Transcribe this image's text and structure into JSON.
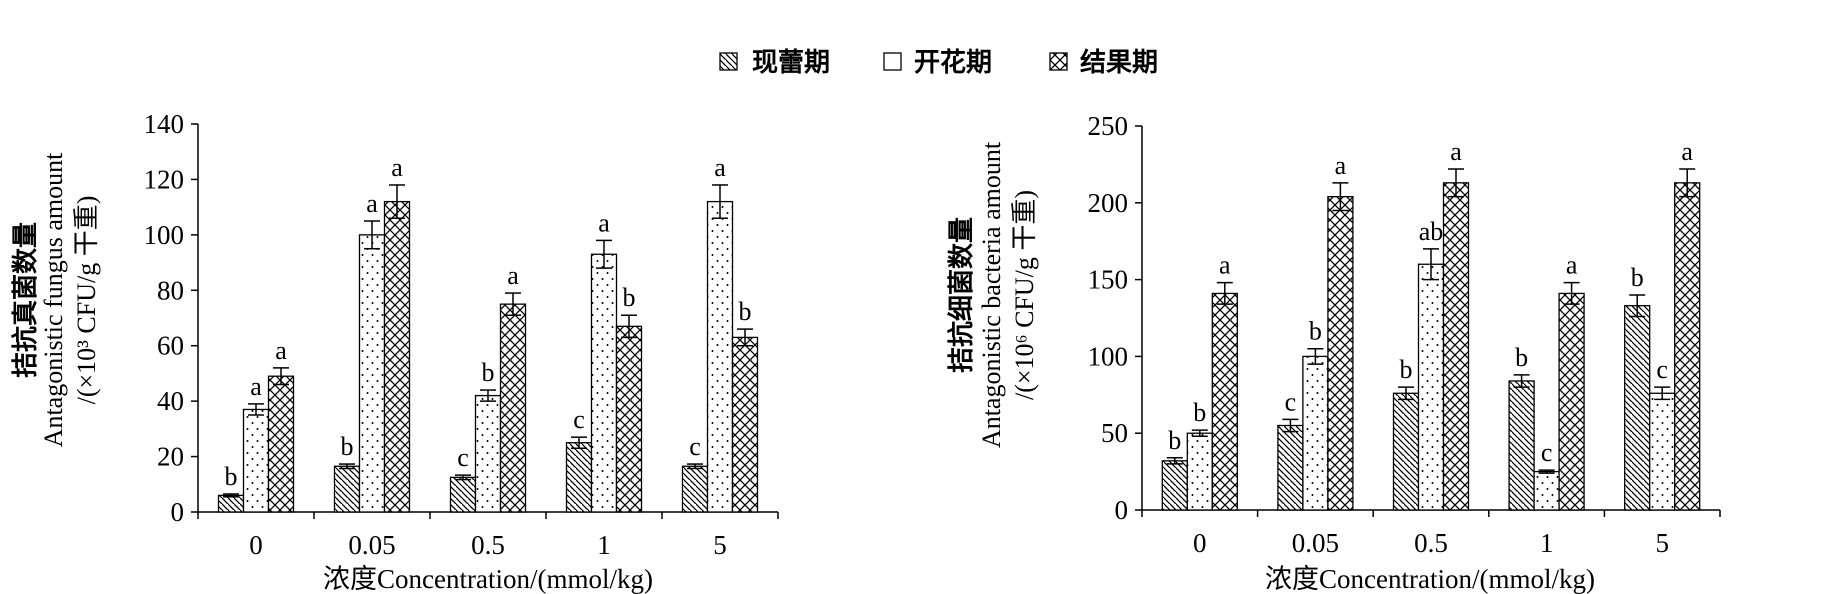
{
  "legend": {
    "items": [
      {
        "label": "现蕾期",
        "pattern": "hatch"
      },
      {
        "label": "开花期",
        "pattern": "dots"
      },
      {
        "label": "结果期",
        "pattern": "cross"
      }
    ]
  },
  "chart_data": [
    {
      "type": "bar",
      "ylabel_cn": "拮抗真菌数量",
      "ylabel_en": "Antagonistic fungus amount",
      "ylabel_unit": "/(×10³ CFU/g 干重)",
      "xlabel": "浓度Concentration/(mmol/kg)",
      "categories": [
        "0",
        "0.05",
        "0.5",
        "1",
        "5"
      ],
      "ylim": [
        0,
        140
      ],
      "yticks": [
        "0",
        "20",
        "40",
        "60",
        "80",
        "100",
        "120",
        "140"
      ],
      "series": [
        {
          "name": "现蕾期",
          "values": [
            6,
            16.5,
            12.5,
            25,
            16.5
          ],
          "errors": [
            0.5,
            0.8,
            0.8,
            2,
            0.8
          ],
          "letters": [
            "b",
            "b",
            "c",
            "c",
            "c"
          ]
        },
        {
          "name": "开花期",
          "values": [
            37,
            100,
            42,
            93,
            112
          ],
          "errors": [
            2,
            5,
            2,
            5,
            6
          ],
          "letters": [
            "a",
            "a",
            "b",
            "a",
            "a"
          ]
        },
        {
          "name": "结果期",
          "values": [
            49,
            112,
            75,
            67,
            63
          ],
          "errors": [
            3,
            6,
            4,
            4,
            3
          ],
          "letters": [
            "a",
            "a",
            "a",
            "b",
            "b"
          ]
        }
      ]
    },
    {
      "type": "bar",
      "ylabel_cn": "拮抗细菌数量",
      "ylabel_en": "Antagonistic bacteria amount",
      "ylabel_unit": "/(×10⁶ CFU/g 干重)",
      "xlabel": "浓度Concentration/(mmol/kg)",
      "categories": [
        "0",
        "0.05",
        "0.5",
        "1",
        "5"
      ],
      "ylim": [
        0,
        250
      ],
      "yticks": [
        "0",
        "50",
        "100",
        "150",
        "200",
        "250"
      ],
      "series": [
        {
          "name": "现蕾期",
          "values": [
            32,
            55,
            76,
            84,
            133
          ],
          "errors": [
            2,
            4,
            4,
            4,
            7
          ],
          "letters": [
            "b",
            "c",
            "b",
            "b",
            "b"
          ]
        },
        {
          "name": "开花期",
          "values": [
            50,
            100,
            160,
            25,
            76
          ],
          "errors": [
            2,
            5,
            10,
            1,
            4
          ],
          "letters": [
            "b",
            "b",
            "ab",
            "c",
            "c"
          ]
        },
        {
          "name": "结果期",
          "values": [
            141,
            204,
            213,
            141,
            213
          ],
          "errors": [
            7,
            9,
            9,
            7,
            9
          ],
          "letters": [
            "a",
            "a",
            "a",
            "a",
            "a"
          ]
        }
      ]
    }
  ]
}
